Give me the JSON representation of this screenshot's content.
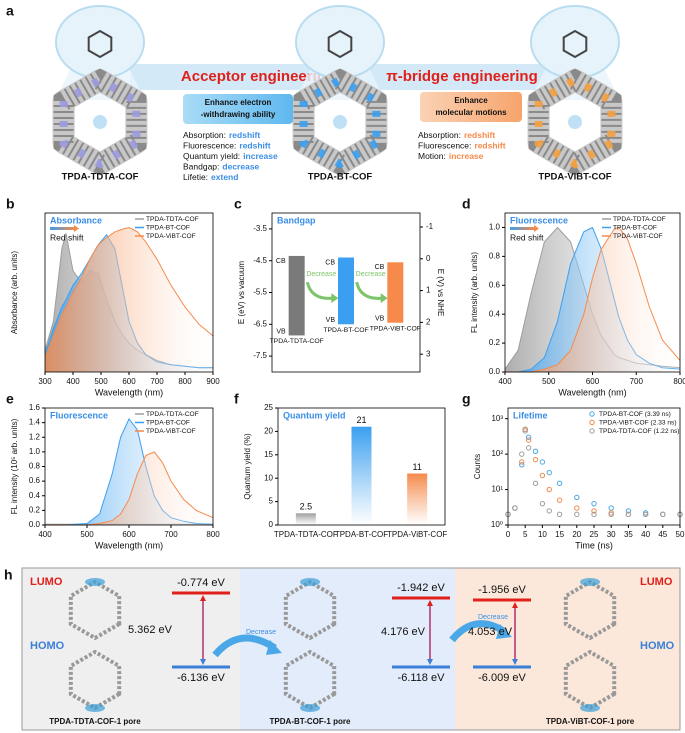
{
  "panel_a": {
    "panel_label": "a",
    "cofs": [
      "TPDA-TDTA-COF",
      "TPDA-BT-COF",
      "TPDA-ViBT-COF"
    ],
    "banner_left": "Acceptor engineering",
    "banner_right": "π-bridge engineering",
    "box_left": [
      "Enhance electron",
      "-withdrawing ability"
    ],
    "box_right": [
      "Enhance",
      "molecular motions"
    ],
    "list_left": [
      {
        "label": "Absorption:",
        "value": "redshift"
      },
      {
        "label": "Fluorescence:",
        "value": "redshift"
      },
      {
        "label": "Quantum yield:",
        "value": "increase"
      },
      {
        "label": "Bandgap:",
        "value": "decrease"
      },
      {
        "label": "Lifetie:",
        "value": "extend"
      }
    ],
    "list_right": [
      {
        "label": "Absorption:",
        "value": "redshift"
      },
      {
        "label": "Fluorescence:",
        "value": "redshift"
      },
      {
        "label": "Motion:",
        "value": "increase"
      }
    ]
  },
  "chart_data": [
    {
      "type": "line",
      "panel_label": "b",
      "title": "Absorbance",
      "annotation": "Red shift",
      "x_label": "Wavelength (nm)",
      "y_label": "Absorbance (arb. units)",
      "fill": true,
      "legend": "upper right",
      "x": [
        300,
        330,
        360,
        375,
        400,
        430,
        460,
        490,
        520,
        550,
        580,
        600,
        630,
        660,
        700,
        750,
        800,
        850,
        900
      ],
      "series": [
        {
          "name": "TPDA-TDTA-COF",
          "color": "#9e9e9e",
          "values": [
            0.15,
            0.35,
            0.85,
            0.96,
            0.7,
            0.62,
            0.7,
            0.68,
            0.5,
            0.35,
            0.25,
            0.2,
            0.15,
            0.12,
            0.08,
            0.05,
            0.04,
            0.03,
            0.03
          ]
        },
        {
          "name": "TPDA-BT-COF",
          "color": "#3a9ff0",
          "values": [
            0.12,
            0.3,
            0.45,
            0.5,
            0.6,
            0.68,
            0.78,
            0.88,
            0.95,
            0.85,
            0.55,
            0.35,
            0.2,
            0.12,
            0.07,
            0.05,
            0.04,
            0.03,
            0.03
          ]
        },
        {
          "name": "TPDA-ViBT-COF",
          "color": "#f58a4b",
          "values": [
            0.1,
            0.25,
            0.4,
            0.45,
            0.55,
            0.65,
            0.78,
            0.88,
            0.93,
            0.97,
            0.99,
            1.0,
            0.97,
            0.9,
            0.78,
            0.6,
            0.45,
            0.33,
            0.25
          ]
        }
      ],
      "xlim": [
        300,
        900
      ],
      "xticks": [
        300,
        400,
        500,
        600,
        700,
        800,
        900
      ],
      "ylim": [
        0,
        1.1
      ]
    },
    {
      "type": "range_bar",
      "panel_label": "c",
      "title": "Bandgap",
      "y_label": "E (eV) vs vacuum",
      "y2_label": "E (V) vs NHE",
      "cb_label": "CB",
      "vb_label": "VB",
      "annotation": "Decrease",
      "categories": [
        "TPDA-TDTA-COF",
        "TPDA-BT-COF",
        "TPDA-ViBT-COF"
      ],
      "colors": [
        "#7a7a7a",
        "#3a9ff0",
        "#f58a4b"
      ],
      "cb": [
        -4.35,
        -4.4,
        -4.55
      ],
      "vb": [
        -6.85,
        -6.5,
        -6.45
      ],
      "ylim": [
        -8,
        -3
      ],
      "yticks": [
        -3.5,
        -4.5,
        -5.5,
        -6.5,
        -7.5
      ],
      "y2lim": [
        3.56,
        -1.44
      ],
      "y2ticks": [
        -1,
        0,
        1,
        2,
        3
      ]
    },
    {
      "type": "line",
      "panel_label": "d",
      "title": "Fluorescence",
      "annotation": "Red shift",
      "x_label": "Wavelength (nm)",
      "y_label": "FL intensity (arb. units)",
      "fill": true,
      "legend": "upper right",
      "x": [
        400,
        430,
        460,
        490,
        520,
        550,
        580,
        600,
        620,
        650,
        660,
        680,
        700,
        730,
        760,
        800
      ],
      "series": [
        {
          "name": "TPDA-TDTA-COF",
          "color": "#9e9e9e",
          "values": [
            0.02,
            0.15,
            0.55,
            0.9,
            1.0,
            0.9,
            0.6,
            0.4,
            0.25,
            0.12,
            0.1,
            0.08,
            0.06,
            0.05,
            0.04,
            0.03
          ]
        },
        {
          "name": "TPDA-BT-COF",
          "color": "#3a9ff0",
          "values": [
            0,
            0,
            0.02,
            0.1,
            0.35,
            0.75,
            0.97,
            1.0,
            0.85,
            0.5,
            0.38,
            0.22,
            0.12,
            0.06,
            0.03,
            0.02
          ]
        },
        {
          "name": "TPDA-ViBT-COF",
          "color": "#f58a4b",
          "values": [
            0,
            0,
            0,
            0.02,
            0.05,
            0.15,
            0.4,
            0.65,
            0.85,
            0.99,
            1.0,
            0.92,
            0.75,
            0.45,
            0.22,
            0.08
          ]
        }
      ],
      "xlim": [
        400,
        800
      ],
      "xticks": [
        400,
        500,
        600,
        700,
        800
      ],
      "ylim": [
        0,
        1.1
      ],
      "yticks": [
        {
          "value": 0,
          "label": "0.0"
        },
        0.2,
        0.4,
        0.6,
        0.8,
        {
          "value": 1,
          "label": "1.0"
        }
      ]
    },
    {
      "type": "line",
      "panel_label": "e",
      "title": "Fluorescence",
      "x_label": "Wavelength (nm)",
      "y_label": "FL intensity (10⁵ arb. units)",
      "fill": true,
      "legend": "upper right",
      "x": [
        400,
        450,
        500,
        530,
        560,
        580,
        600,
        620,
        640,
        660,
        680,
        700,
        730,
        760,
        800
      ],
      "series": [
        {
          "name": "TPDA-TDTA-COF",
          "color": "#9e9e9e",
          "values": [
            0.01,
            0.01,
            0.01,
            0.01,
            0.01,
            0.01,
            0.01,
            0.01,
            0.01,
            0.01,
            0.01,
            0.01,
            0.01,
            0.01,
            0.01
          ]
        },
        {
          "name": "TPDA-BT-COF",
          "color": "#3a9ff0",
          "values": [
            0,
            0,
            0.02,
            0.15,
            0.7,
            1.2,
            1.45,
            1.3,
            0.8,
            0.4,
            0.2,
            0.1,
            0.05,
            0.02,
            0.01
          ]
        },
        {
          "name": "TPDA-ViBT-COF",
          "color": "#f58a4b",
          "values": [
            0,
            0,
            0,
            0.02,
            0.06,
            0.15,
            0.35,
            0.7,
            0.95,
            1.0,
            0.85,
            0.6,
            0.35,
            0.2,
            0.1
          ]
        }
      ],
      "xlim": [
        400,
        800
      ],
      "xticks": [
        400,
        500,
        600,
        700,
        800
      ],
      "ylim": [
        0,
        1.6
      ],
      "yticks": [
        {
          "value": 0,
          "label": "0.0"
        },
        0.2,
        0.4,
        0.6,
        0.8,
        {
          "value": 1,
          "label": "1.0"
        },
        1.2,
        1.4,
        1.6
      ]
    },
    {
      "type": "bar",
      "panel_label": "f",
      "title": "Quantum yield",
      "y_label": "Quantum yield (%)",
      "categories": [
        "TPDA-TDTA-COF",
        "TPDA-BT-COF",
        "TPDA-ViBT-COF"
      ],
      "colors": [
        "#9e9e9e",
        "#3a9ff0",
        "#f58a4b"
      ],
      "values": [
        2.5,
        21,
        11
      ],
      "ylim": [
        0,
        25
      ],
      "yticks": [
        0,
        5,
        10,
        15,
        20,
        25
      ]
    },
    {
      "type": "scatter",
      "panel_label": "g",
      "title": "Lifetime",
      "x_label": "Time (ns)",
      "y_label": "Counts",
      "log_y": true,
      "legend": "upper right",
      "x": [
        0,
        2,
        4,
        5,
        6,
        8,
        10,
        12,
        15,
        20,
        25,
        30,
        35,
        40,
        45,
        50
      ],
      "series": [
        {
          "name": "TPDA-BT-COF (3.39 ns)",
          "color": "#4aa8e8",
          "values": [
            2,
            3,
            50,
            500,
            300,
            120,
            60,
            30,
            15,
            6,
            4,
            3,
            2.5,
            2.2,
            2,
            2
          ]
        },
        {
          "name": "TPDA-ViBT-COF (2.33 ns)",
          "color": "#f0894a",
          "values": [
            2,
            3,
            60,
            500,
            250,
            70,
            25,
            10,
            5,
            3,
            2.5,
            2.2,
            2,
            2,
            2,
            2
          ]
        },
        {
          "name": "TPDA-TDTA-COF (1.22 ns)",
          "color": "#9e9e9e",
          "values": [
            2,
            3,
            100,
            450,
            150,
            15,
            4,
            2.5,
            2,
            2,
            2,
            2,
            2,
            2,
            2,
            2
          ]
        }
      ],
      "xlim": [
        0,
        50
      ],
      "xticks": [
        0,
        5,
        10,
        15,
        20,
        25,
        30,
        35,
        40,
        45,
        50
      ],
      "ylim": [
        1,
        2000
      ],
      "yticks": [
        {
          "value": 1,
          "label": "10⁰"
        },
        {
          "value": 10,
          "label": "10¹"
        },
        {
          "value": 100,
          "label": "10²"
        },
        {
          "value": 1000,
          "label": "10³"
        }
      ]
    }
  ],
  "panel_h": {
    "panel_label": "h",
    "lumo": "LUMO",
    "homo": "HOMO",
    "arrow_label": "Decrease",
    "pores": [
      {
        "name": "TPDA-TDTA-COF-1 pore",
        "lumo": "-0.774 eV",
        "homo": "-6.136 eV",
        "gap": "5.362 eV"
      },
      {
        "name": "TPDA-BT-COF-1 pore",
        "lumo": "-1.942 eV",
        "homo": "-6.118 eV",
        "gap": "4.176 eV"
      },
      {
        "name": "TPDA-ViBT-COF-1 pore",
        "lumo": "-1.956 eV",
        "homo": "-6.009 eV",
        "gap": "4.053 eV"
      }
    ]
  }
}
